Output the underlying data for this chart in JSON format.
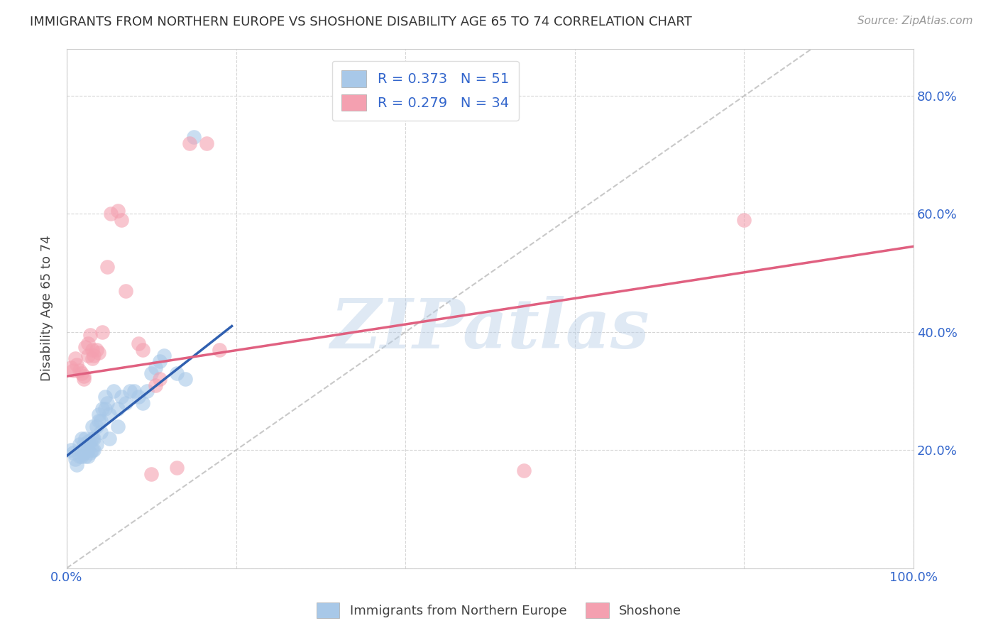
{
  "title": "IMMIGRANTS FROM NORTHERN EUROPE VS SHOSHONE DISABILITY AGE 65 TO 74 CORRELATION CHART",
  "source_text": "Source: ZipAtlas.com",
  "ylabel": "Disability Age 65 to 74",
  "xlim": [
    0,
    1.0
  ],
  "ylim": [
    0,
    0.88
  ],
  "ytick_positions": [
    0.0,
    0.2,
    0.4,
    0.6,
    0.8
  ],
  "ytick_labels": [
    "",
    "20.0%",
    "40.0%",
    "60.0%",
    "80.0%"
  ],
  "xtick_positions": [
    0.0,
    0.2,
    0.4,
    0.6,
    0.8,
    1.0
  ],
  "xtick_labels": [
    "0.0%",
    "",
    "",
    "",
    "",
    "100.0%"
  ],
  "legend_labels": [
    "R = 0.373   N = 51",
    "R = 0.279   N = 34"
  ],
  "blue_color": "#a8c8e8",
  "pink_color": "#f4a0b0",
  "blue_line_color": "#3060b0",
  "pink_line_color": "#e06080",
  "watermark": "ZIPatlas",
  "blue_scatter_x": [
    0.005,
    0.008,
    0.01,
    0.012,
    0.015,
    0.015,
    0.018,
    0.018,
    0.02,
    0.02,
    0.022,
    0.022,
    0.025,
    0.025,
    0.025,
    0.028,
    0.028,
    0.03,
    0.03,
    0.03,
    0.032,
    0.032,
    0.035,
    0.035,
    0.038,
    0.038,
    0.04,
    0.04,
    0.042,
    0.045,
    0.045,
    0.048,
    0.05,
    0.05,
    0.055,
    0.06,
    0.06,
    0.065,
    0.07,
    0.075,
    0.08,
    0.085,
    0.09,
    0.095,
    0.1,
    0.105,
    0.11,
    0.115,
    0.13,
    0.14,
    0.15
  ],
  "blue_scatter_y": [
    0.2,
    0.195,
    0.185,
    0.175,
    0.19,
    0.21,
    0.19,
    0.22,
    0.195,
    0.21,
    0.19,
    0.22,
    0.19,
    0.2,
    0.215,
    0.195,
    0.215,
    0.2,
    0.22,
    0.24,
    0.2,
    0.22,
    0.21,
    0.24,
    0.25,
    0.26,
    0.25,
    0.23,
    0.27,
    0.27,
    0.29,
    0.28,
    0.26,
    0.22,
    0.3,
    0.24,
    0.27,
    0.29,
    0.28,
    0.3,
    0.3,
    0.29,
    0.28,
    0.3,
    0.33,
    0.34,
    0.35,
    0.36,
    0.33,
    0.32,
    0.73
  ],
  "pink_scatter_x": [
    0.005,
    0.008,
    0.01,
    0.012,
    0.015,
    0.018,
    0.02,
    0.02,
    0.022,
    0.025,
    0.025,
    0.028,
    0.03,
    0.03,
    0.032,
    0.035,
    0.038,
    0.042,
    0.048,
    0.052,
    0.06,
    0.065,
    0.07,
    0.085,
    0.09,
    0.1,
    0.105,
    0.11,
    0.13,
    0.145,
    0.165,
    0.18,
    0.54,
    0.8
  ],
  "pink_scatter_y": [
    0.34,
    0.335,
    0.355,
    0.345,
    0.335,
    0.33,
    0.325,
    0.32,
    0.375,
    0.36,
    0.38,
    0.395,
    0.355,
    0.37,
    0.36,
    0.37,
    0.365,
    0.4,
    0.51,
    0.6,
    0.605,
    0.59,
    0.47,
    0.38,
    0.37,
    0.16,
    0.31,
    0.32,
    0.17,
    0.72,
    0.72,
    0.37,
    0.165,
    0.59
  ],
  "blue_trendline_x": [
    0.0,
    0.195
  ],
  "blue_trendline_y": [
    0.19,
    0.41
  ],
  "pink_trendline_x": [
    0.0,
    1.0
  ],
  "pink_trendline_y": [
    0.325,
    0.545
  ],
  "diag_line_x": [
    0.0,
    0.88
  ],
  "diag_line_y": [
    0.0,
    0.88
  ]
}
